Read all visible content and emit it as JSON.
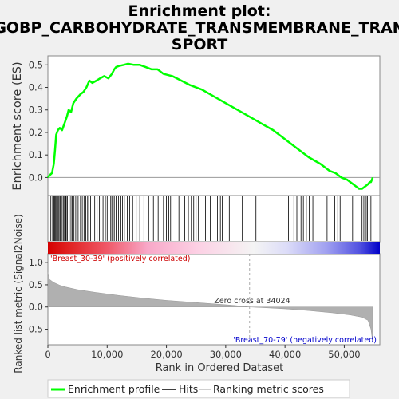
{
  "chart_data": {
    "type": "line",
    "title_lines": [
      "Enrichment plot:",
      "GOBP_CARBOHYDRATE_TRANSMEMBRANE_TRAN",
      "SPORT"
    ],
    "xlabel": "Rank in Ordered Dataset",
    "ylabel_top": "Enrichment score (ES)",
    "ylabel_bottom": "Ranked list metric (Signal2Noise)",
    "x_range": [
      0,
      56000
    ],
    "es_ylim": [
      -0.08,
      0.54
    ],
    "metric_ylim": [
      -0.85,
      1.2
    ],
    "x_ticks": [
      {
        "v": 0,
        "t": "0"
      },
      {
        "v": 10000,
        "t": "10,000"
      },
      {
        "v": 20000,
        "t": "20,000"
      },
      {
        "v": 30000,
        "t": "30,000"
      },
      {
        "v": 40000,
        "t": "40,000"
      },
      {
        "v": 50000,
        "t": "50,000"
      }
    ],
    "es_ticks": [
      {
        "v": 0.0,
        "t": "0.0"
      },
      {
        "v": 0.1,
        "t": "0.1"
      },
      {
        "v": 0.2,
        "t": "0.2"
      },
      {
        "v": 0.3,
        "t": "0.3"
      },
      {
        "v": 0.4,
        "t": "0.4"
      },
      {
        "v": 0.5,
        "t": "0.5"
      }
    ],
    "metric_ticks": [
      {
        "v": -0.5,
        "t": "-0.5"
      },
      {
        "v": 0.0,
        "t": "0.0"
      },
      {
        "v": 0.5,
        "t": "0.5"
      },
      {
        "v": 1.0,
        "t": "1.0"
      }
    ],
    "es_profile": [
      [
        0,
        0.0
      ],
      [
        300,
        0.01
      ],
      [
        700,
        0.02
      ],
      [
        1000,
        0.06
      ],
      [
        1200,
        0.12
      ],
      [
        1400,
        0.19
      ],
      [
        1700,
        0.21
      ],
      [
        2000,
        0.22
      ],
      [
        2400,
        0.21
      ],
      [
        2800,
        0.24
      ],
      [
        3200,
        0.27
      ],
      [
        3500,
        0.3
      ],
      [
        3900,
        0.29
      ],
      [
        4300,
        0.33
      ],
      [
        4800,
        0.35
      ],
      [
        5500,
        0.37
      ],
      [
        6000,
        0.38
      ],
      [
        6500,
        0.4
      ],
      [
        7000,
        0.43
      ],
      [
        7500,
        0.42
      ],
      [
        8200,
        0.43
      ],
      [
        8800,
        0.44
      ],
      [
        9500,
        0.45
      ],
      [
        10200,
        0.44
      ],
      [
        10800,
        0.46
      ],
      [
        11200,
        0.48
      ],
      [
        11500,
        0.49
      ],
      [
        12000,
        0.495
      ],
      [
        12800,
        0.5
      ],
      [
        13500,
        0.505
      ],
      [
        14500,
        0.5
      ],
      [
        15500,
        0.5
      ],
      [
        16500,
        0.49
      ],
      [
        17500,
        0.48
      ],
      [
        18500,
        0.48
      ],
      [
        19500,
        0.46
      ],
      [
        21000,
        0.45
      ],
      [
        22500,
        0.43
      ],
      [
        24000,
        0.41
      ],
      [
        26000,
        0.39
      ],
      [
        28000,
        0.36
      ],
      [
        30000,
        0.33
      ],
      [
        32000,
        0.3
      ],
      [
        34000,
        0.27
      ],
      [
        36000,
        0.24
      ],
      [
        38000,
        0.21
      ],
      [
        40000,
        0.17
      ],
      [
        42000,
        0.13
      ],
      [
        44000,
        0.09
      ],
      [
        46000,
        0.06
      ],
      [
        47500,
        0.03
      ],
      [
        48500,
        0.02
      ],
      [
        49500,
        0.0
      ],
      [
        50500,
        -0.01
      ],
      [
        51500,
        -0.03
      ],
      [
        52500,
        -0.05
      ],
      [
        53000,
        -0.05
      ],
      [
        53500,
        -0.04
      ],
      [
        54000,
        -0.03
      ],
      [
        54300,
        -0.02
      ],
      [
        54500,
        -0.02
      ],
      [
        54800,
        0.0
      ]
    ],
    "hits": [
      200,
      500,
      800,
      1000,
      1150,
      1300,
      1450,
      1600,
      1750,
      1900,
      2100,
      2400,
      2600,
      2800,
      3000,
      3100,
      3300,
      3600,
      3900,
      4100,
      4400,
      4700,
      5100,
      5500,
      5800,
      6100,
      6400,
      6700,
      6900,
      7200,
      7900,
      8300,
      8700,
      9300,
      9700,
      10000,
      10300,
      10600,
      10800,
      11000,
      11200,
      11500,
      11900,
      12300,
      12600,
      12900,
      13400,
      13800,
      14300,
      14900,
      15500,
      16200,
      17000,
      17800,
      18600,
      19500,
      20000,
      20400,
      20700,
      22100,
      23100,
      23700,
      24200,
      24600,
      25000,
      25400,
      26600,
      27400,
      28600,
      29100,
      29400,
      30600,
      32800,
      35100,
      40600,
      41500,
      42000,
      42700,
      43100,
      43600,
      44100,
      44700,
      47100,
      48400,
      48900,
      49300,
      51400,
      53000,
      53300,
      53700,
      53900,
      54200,
      54500
    ],
    "metric_curve": [
      [
        0,
        0.78
      ],
      [
        300,
        0.62
      ],
      [
        1000,
        0.55
      ],
      [
        2000,
        0.49
      ],
      [
        3000,
        0.45
      ],
      [
        5000,
        0.39
      ],
      [
        8000,
        0.33
      ],
      [
        12000,
        0.26
      ],
      [
        16000,
        0.2
      ],
      [
        20000,
        0.15
      ],
      [
        24000,
        0.11
      ],
      [
        28000,
        0.07
      ],
      [
        31000,
        0.04
      ],
      [
        34024,
        0.0
      ],
      [
        37000,
        -0.02
      ],
      [
        40000,
        -0.04
      ],
      [
        44000,
        -0.08
      ],
      [
        48000,
        -0.13
      ],
      [
        51000,
        -0.18
      ],
      [
        53000,
        -0.23
      ],
      [
        54000,
        -0.3
      ],
      [
        54500,
        -0.5
      ],
      [
        54800,
        -0.8
      ]
    ],
    "zero_cross_x": 34024,
    "zero_cross_label": "Zero cross at 34024",
    "pos_label": "'Breast_30-39' (positively correlated)",
    "neg_label": "'Breast_70-79' (negatively correlated)",
    "legend": [
      {
        "label": "Enrichment profile",
        "color": "#00ff00"
      },
      {
        "label": "Hits",
        "color": "#000000"
      },
      {
        "label": "Ranking metric scores",
        "color": "#c0c0c0"
      }
    ],
    "colors": {
      "es_line": "#00ff00",
      "pos_text": "#cc0000",
      "neg_text": "#0000cc",
      "metric_fill": "#b0b0b0"
    }
  }
}
